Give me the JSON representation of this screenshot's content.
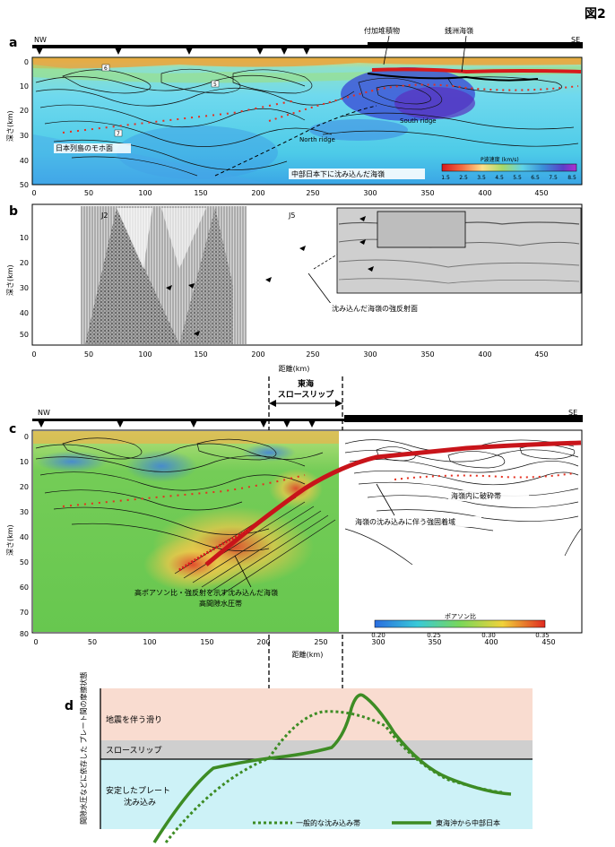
{
  "figure_label": "図2",
  "panels": {
    "a": {
      "letter": "a",
      "dir_left": "NW",
      "dir_right": "SE",
      "ylabel": "深さ(km)",
      "yticks": [
        0,
        10,
        20,
        30,
        40,
        50
      ],
      "xticks": [
        0,
        50,
        100,
        150,
        200,
        250,
        300,
        350,
        400,
        450
      ],
      "annotations": {
        "accretion": "付加堆積物",
        "zenisu": "銭洲海嶺",
        "moho": "日本列島のモホ面",
        "north_ridge": "North ridge",
        "south_ridge": "South ridge",
        "subducted": "中部日本下に沈み込んだ海嶺"
      },
      "colorbar": {
        "title": "P波速度 (km/s)",
        "ticks": [
          "1.5",
          "2.5",
          "3.5",
          "4.5",
          "5.5",
          "6.5",
          "7.5",
          "8.5"
        ]
      },
      "contour_labels": [
        "6",
        "5",
        "7"
      ]
    },
    "b": {
      "letter": "b",
      "ylabel": "深さ(km)",
      "yticks": [
        10,
        20,
        30,
        40,
        50
      ],
      "xticks": [
        0,
        50,
        100,
        150,
        200,
        250,
        300,
        350,
        400,
        450
      ],
      "xlabel": "距離(km)",
      "station_left": "J2",
      "station_right": "J5",
      "annotation": "沈み込んだ海嶺の強反射面"
    },
    "c": {
      "letter": "c",
      "dir_left": "NW",
      "dir_right": "SE",
      "ylabel": "深さ(km)",
      "yticks": [
        0,
        10,
        20,
        30,
        40,
        50,
        60,
        70,
        80
      ],
      "xticks": [
        0,
        50,
        100,
        150,
        200,
        250,
        300,
        350,
        400,
        450
      ],
      "xlabel": "距離(km)",
      "tokai_title1": "東海",
      "tokai_title2": "スロースリップ",
      "annotations": {
        "fracture": "海嶺内に破砕帯",
        "coupling": "海嶺の沈み込みに伴う強固着域",
        "highpoisson1": "高ポアソン比・強反射を示す沈み込んだ海嶺",
        "highpoisson2": "高間隙水圧帯"
      },
      "colorbar": {
        "title": "ポアソン比",
        "ticks": [
          "0.20",
          "0.25",
          "0.30",
          "0.35"
        ]
      }
    },
    "d": {
      "letter": "d",
      "ylabel": "間隙水圧などに依存した プレート間の摩擦状態",
      "zone_quake": "地震を伴う滑り",
      "zone_slow": "スロースリップ",
      "zone_stable1": "安定したプレート",
      "zone_stable2": "沈み込み",
      "legend_dotted": "一般的な沈み込み帯",
      "legend_solid": "東海沖から中部日本",
      "colors": {
        "quake": "#f9dcd0",
        "slow": "#cfcfcf",
        "stable": "#cdf2f7",
        "curve": "#3d8c24"
      }
    }
  }
}
